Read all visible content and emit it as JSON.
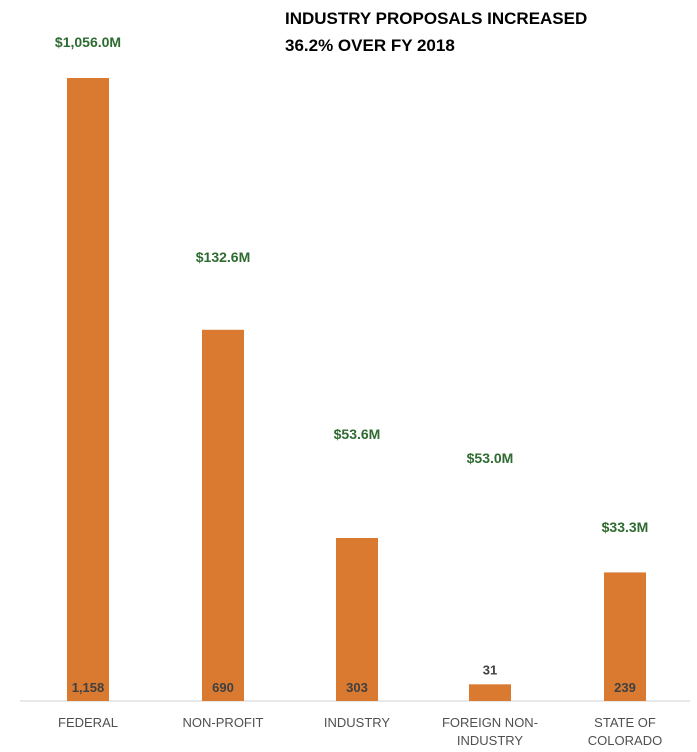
{
  "chart_data": {
    "type": "bar",
    "title": [
      "INDUSTRY PROPOSALS INCREASED",
      "36.2% OVER FY 2018"
    ],
    "categories": [
      [
        "FEDERAL"
      ],
      [
        "NON-PROFIT"
      ],
      [
        "INDUSTRY"
      ],
      [
        "FOREIGN NON-",
        "INDUSTRY"
      ],
      [
        "STATE OF",
        "COLORADO"
      ]
    ],
    "series": [
      {
        "values": [
          1158,
          690,
          303,
          31,
          239
        ],
        "value_labels": [
          "1,158",
          "690",
          "303",
          "31",
          "239"
        ]
      }
    ],
    "amount_labels": [
      "$1,056.0M",
      "$132.6M",
      "$53.6M",
      "$53.0M",
      "$33.3M"
    ],
    "ylim": [
      0,
      1158
    ],
    "grid": false,
    "legend": "none",
    "colors": {
      "bar": "#d97a30",
      "amount_text": "#2e6b30",
      "count_text": "#404040",
      "axis": "#d0d0d0"
    }
  }
}
